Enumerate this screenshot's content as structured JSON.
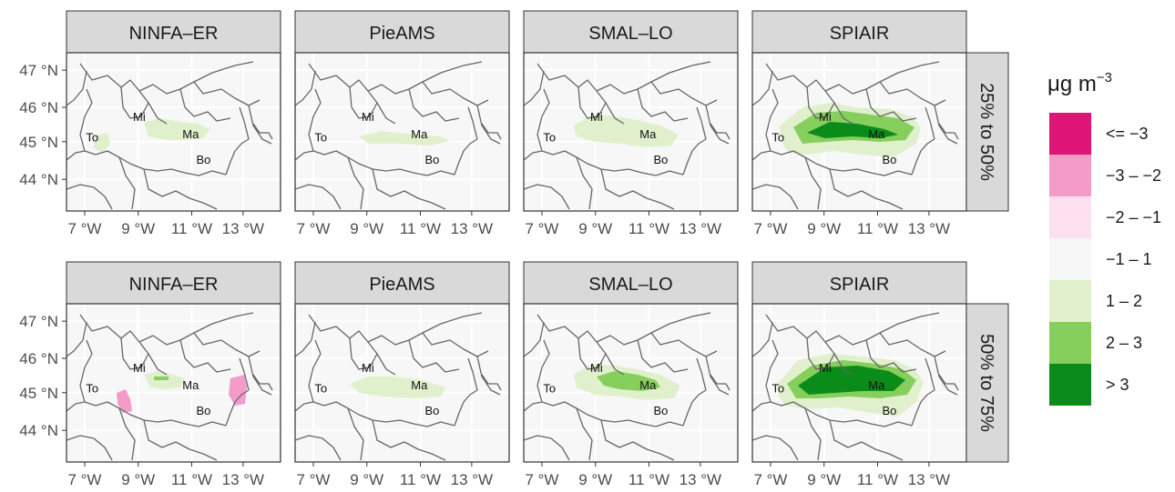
{
  "chart_data": {
    "type": "heatmap",
    "columns": [
      "NINFA–ER",
      "PieAMS",
      "SMAL–LO",
      "SPIAIR"
    ],
    "rows": [
      "25% to 50%",
      "50% to 75%"
    ],
    "x_ticks": [
      "7 °W",
      "9 °W",
      "11 °W",
      "13 °W"
    ],
    "y_ticks": [
      "47 °N",
      "46 °N",
      "45 °N",
      "44 °N"
    ],
    "cities": [
      "To",
      "Mi",
      "Ma",
      "Bo"
    ],
    "legend": {
      "title": "μg m",
      "title_sup": "−3",
      "items": [
        {
          "label": "<= −3",
          "color": "#de1477"
        },
        {
          "label": "−3 – −2",
          "color": "#f49cc8"
        },
        {
          "label": "−2 – −1",
          "color": "#fde0ef"
        },
        {
          "label": "−1 – 1",
          "color": "#f7f7f7"
        },
        {
          "label": "1 – 2",
          "color": "#e0f0cd"
        },
        {
          "label": "2 – 3",
          "color": "#86cf5c"
        },
        {
          "label": "> 3",
          "color": "#0b8c1a"
        }
      ]
    },
    "colors": {
      "strip_bg": "#d9d9d9",
      "panel_bg": "#f7f7f7",
      "grid": "#ebebeb",
      "border_line": "#666666"
    },
    "grid": true,
    "legend_position": "right"
  }
}
